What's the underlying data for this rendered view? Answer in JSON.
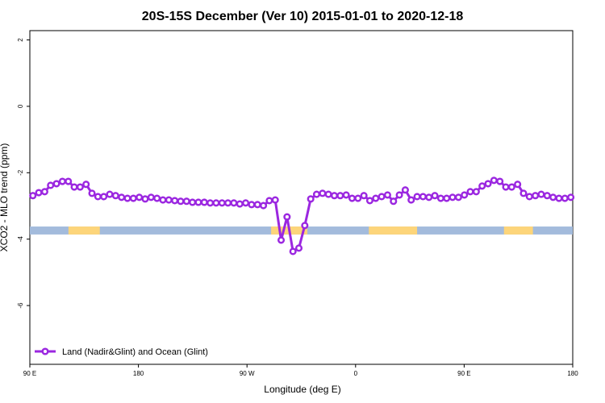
{
  "chart_data": {
    "type": "line",
    "title": "20S-15S December (Ver 10)   2015-01-01 to 2020-12-18",
    "x_label": "Longitude (deg E)",
    "y_label": "XCO2 - MLO trend (ppm)",
    "xlim": [
      90,
      540
    ],
    "ylim": [
      -7.77,
      2.28
    ],
    "xticks": [
      {
        "value": 90,
        "label": "90 E"
      },
      180,
      {
        "value": 270,
        "label": "90 W"
      },
      {
        "value": 360,
        "label": "0"
      },
      {
        "value": 450,
        "label": "90 E"
      },
      {
        "value": 540,
        "label": "180"
      }
    ],
    "yticks": [
      -6,
      -4,
      -2,
      0,
      2
    ],
    "legend_position": "bottom-left",
    "surface_band": {
      "ylim": [
        -3.86,
        -3.62
      ],
      "ocean_color": "#a3bbdc",
      "land_color": "#fdd57a",
      "land": [
        [
          122,
          148
        ],
        [
          290,
          320
        ],
        [
          371,
          411
        ],
        [
          483,
          507
        ]
      ]
    },
    "series": [
      {
        "name": "Land (Nadir&Glint) and Ocean (Glint)",
        "color": "#9b27e0",
        "x": [
          92.5,
          97.4,
          102.3,
          107.2,
          112.1,
          117.0,
          121.9,
          126.8,
          131.7,
          136.6,
          141.5,
          146.4,
          151.3,
          156.2,
          161.1,
          166.0,
          170.9,
          175.8,
          180.7,
          185.6,
          190.5,
          195.4,
          200.3,
          205.2,
          210.1,
          215.0,
          219.9,
          224.8,
          229.7,
          234.6,
          239.5,
          244.4,
          249.3,
          254.2,
          259.1,
          264.0,
          268.9,
          273.8,
          278.7,
          283.6,
          288.5,
          293.4,
          298.3,
          303.2,
          308.1,
          313.0,
          317.9,
          322.8,
          327.7,
          332.6,
          337.5,
          342.4,
          347.3,
          352.2,
          357.1,
          362.0,
          366.9,
          371.8,
          376.7,
          381.6,
          386.5,
          391.4,
          396.3,
          401.2,
          406.1,
          411.0,
          415.9,
          420.8,
          425.7,
          430.6,
          435.5,
          440.4,
          445.3,
          450.2,
          455.1,
          460.0,
          464.9,
          469.8,
          474.7,
          479.6,
          484.5,
          489.4,
          494.3,
          499.2,
          504.1,
          509.0,
          513.9,
          518.8,
          523.7,
          528.6,
          533.5,
          538.4
        ],
        "values": [
          -2.69,
          -2.6,
          -2.57,
          -2.38,
          -2.33,
          -2.26,
          -2.26,
          -2.43,
          -2.43,
          -2.35,
          -2.62,
          -2.72,
          -2.72,
          -2.65,
          -2.69,
          -2.74,
          -2.77,
          -2.77,
          -2.74,
          -2.79,
          -2.74,
          -2.77,
          -2.82,
          -2.82,
          -2.84,
          -2.86,
          -2.86,
          -2.89,
          -2.89,
          -2.89,
          -2.91,
          -2.91,
          -2.91,
          -2.91,
          -2.91,
          -2.94,
          -2.91,
          -2.96,
          -2.96,
          -2.99,
          -2.84,
          -2.82,
          -4.03,
          -3.33,
          -4.37,
          -4.27,
          -3.59,
          -2.79,
          -2.65,
          -2.62,
          -2.65,
          -2.69,
          -2.69,
          -2.67,
          -2.77,
          -2.77,
          -2.69,
          -2.84,
          -2.77,
          -2.72,
          -2.67,
          -2.86,
          -2.67,
          -2.52,
          -2.82,
          -2.72,
          -2.72,
          -2.74,
          -2.69,
          -2.77,
          -2.77,
          -2.74,
          -2.74,
          -2.67,
          -2.57,
          -2.57,
          -2.4,
          -2.33,
          -2.23,
          -2.26,
          -2.43,
          -2.43,
          -2.35,
          -2.62,
          -2.72,
          -2.69,
          -2.65,
          -2.69,
          -2.74,
          -2.77,
          -2.77,
          -2.74
        ]
      }
    ]
  }
}
